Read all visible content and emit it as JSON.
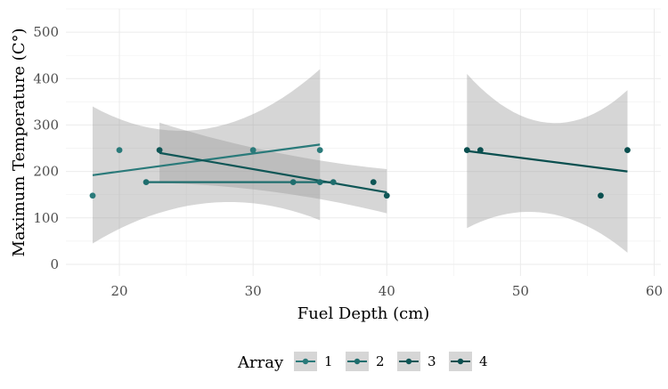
{
  "chart_data": {
    "type": "scatter",
    "xlabel": "Fuel Depth (cm)",
    "ylabel": "Maximum Temperature (C°)",
    "xlim": [
      16,
      60.5
    ],
    "ylim": [
      -25,
      550
    ],
    "x_ticks": [
      20,
      30,
      40,
      50,
      60
    ],
    "y_ticks": [
      0,
      100,
      200,
      300,
      400,
      500
    ],
    "grid": true,
    "legend": {
      "title": "Array",
      "position": "bottom",
      "entries": [
        "1",
        "2",
        "3",
        "4"
      ]
    },
    "series": [
      {
        "name": "1",
        "color": "#2a7a7a",
        "points": [
          [
            18,
            148
          ],
          [
            20,
            246
          ],
          [
            30,
            246
          ],
          [
            35,
            246
          ]
        ],
        "fit": {
          "x": [
            18,
            35
          ],
          "y": [
            192,
            258
          ]
        },
        "band": {
          "x": [
            18,
            26,
            35
          ],
          "lower": [
            45,
            130,
            95
          ],
          "upper": [
            340,
            290,
            420
          ]
        }
      },
      {
        "name": "2",
        "color": "#1f6e6e",
        "points": [
          [
            22,
            177
          ],
          [
            33,
            177
          ],
          [
            35,
            177
          ],
          [
            36,
            177
          ]
        ],
        "fit": {
          "x": [
            22,
            36
          ],
          "y": [
            177,
            177
          ]
        },
        "band": {
          "x": [
            22,
            36
          ],
          "lower": [
            177,
            177
          ],
          "upper": [
            177,
            177
          ]
        }
      },
      {
        "name": "3",
        "color": "#0f5656",
        "points": [
          [
            23,
            246
          ],
          [
            39,
            177
          ],
          [
            40,
            148
          ]
        ],
        "fit": {
          "x": [
            23,
            40
          ],
          "y": [
            240,
            155
          ]
        },
        "band": {
          "x": [
            23,
            31,
            40
          ],
          "lower": [
            175,
            158,
            110
          ],
          "upper": [
            305,
            245,
            205
          ]
        }
      },
      {
        "name": "4",
        "color": "#0a4f4f",
        "points": [
          [
            46,
            246
          ],
          [
            47,
            246
          ],
          [
            56,
            148
          ],
          [
            58,
            246
          ]
        ],
        "fit": {
          "x": [
            46,
            58
          ],
          "y": [
            244,
            200
          ]
        },
        "band": {
          "x": [
            46,
            52,
            58
          ],
          "lower": [
            78,
            110,
            25
          ],
          "upper": [
            410,
            305,
            375
          ]
        }
      }
    ]
  }
}
